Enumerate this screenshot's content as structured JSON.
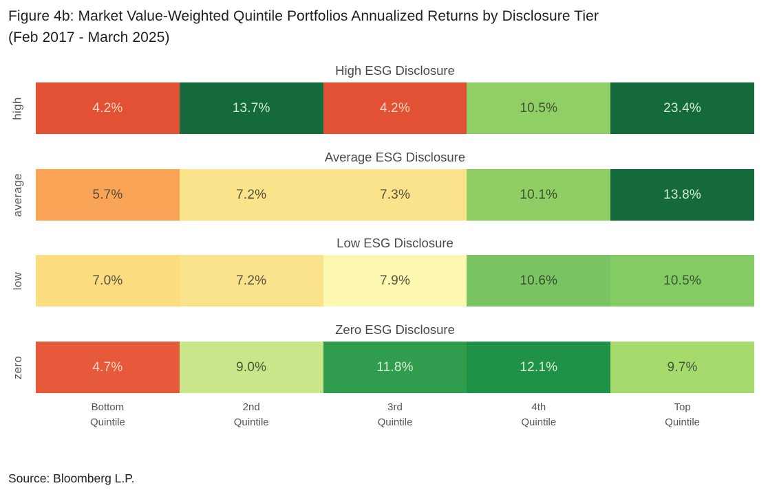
{
  "page": {
    "title_line1": "Figure 4b: Market Value-Weighted Quintile Portfolios Annualized Returns by Disclosure Tier",
    "title_line2": "(Feb 2017 - March 2025)",
    "source": "Source: Bloomberg L.P."
  },
  "chart_data": {
    "type": "heatmap",
    "title": "Figure 4b: Market Value-Weighted Quintile Portfolios Annualized Returns by Disclosure Tier (Feb 2017 - March 2025)",
    "unit": "%",
    "categories": [
      "Bottom Quintile",
      "2nd Quintile",
      "3rd Quintile",
      "4th Quintile",
      "Top Quintile"
    ],
    "legend": "none",
    "grid": false,
    "rows": [
      {
        "label": "high",
        "subtitle": "High ESG Disclosure",
        "values": [
          4.2,
          13.7,
          4.2,
          10.5,
          23.4
        ],
        "cells": [
          {
            "text": "4.2%",
            "bg": "#E25133",
            "fg": "#F8D7C9"
          },
          {
            "text": "13.7%",
            "bg": "#156A3B",
            "fg": "#D0EBD0"
          },
          {
            "text": "4.2%",
            "bg": "#E25133",
            "fg": "#F8D7C9"
          },
          {
            "text": "10.5%",
            "bg": "#90CE66",
            "fg": "#3E5530"
          },
          {
            "text": "23.4%",
            "bg": "#156A3B",
            "fg": "#D0EBD0"
          }
        ]
      },
      {
        "label": "average",
        "subtitle": "Average ESG Disclosure",
        "values": [
          5.7,
          7.2,
          7.3,
          10.1,
          13.8
        ],
        "cells": [
          {
            "text": "5.7%",
            "bg": "#F9A457",
            "fg": "#5A4A38"
          },
          {
            "text": "7.2%",
            "bg": "#FAE38B",
            "fg": "#56523F"
          },
          {
            "text": "7.3%",
            "bg": "#FAE38B",
            "fg": "#56523F"
          },
          {
            "text": "10.1%",
            "bg": "#8FCD65",
            "fg": "#3E5530"
          },
          {
            "text": "13.8%",
            "bg": "#156A3B",
            "fg": "#D0EBD0"
          }
        ]
      },
      {
        "label": "low",
        "subtitle": "Low ESG Disclosure",
        "values": [
          7.0,
          7.2,
          7.9,
          10.6,
          10.5
        ],
        "cells": [
          {
            "text": "7.0%",
            "bg": "#FBDC7E",
            "fg": "#56523F"
          },
          {
            "text": "7.2%",
            "bg": "#FAE38B",
            "fg": "#56523F"
          },
          {
            "text": "7.9%",
            "bg": "#FCF8AF",
            "fg": "#56523F"
          },
          {
            "text": "10.6%",
            "bg": "#7BC465",
            "fg": "#37512D"
          },
          {
            "text": "10.5%",
            "bg": "#85CB63",
            "fg": "#3A5430"
          }
        ]
      },
      {
        "label": "zero",
        "subtitle": "Zero ESG Disclosure",
        "values": [
          4.7,
          9.0,
          11.8,
          12.1,
          9.7
        ],
        "cells": [
          {
            "text": "4.7%",
            "bg": "#E6593A",
            "fg": "#F8D7C9"
          },
          {
            "text": "9.0%",
            "bg": "#C9E68A",
            "fg": "#4E5638"
          },
          {
            "text": "11.8%",
            "bg": "#2F9C4E",
            "fg": "#D6EFD6"
          },
          {
            "text": "12.1%",
            "bg": "#209247",
            "fg": "#D6EFD6"
          },
          {
            "text": "9.7%",
            "bg": "#A6DA6C",
            "fg": "#43553A"
          }
        ]
      }
    ],
    "column_labels": [
      {
        "line1": "Bottom",
        "line2": "Quintile"
      },
      {
        "line1": "2nd",
        "line2": "Quintile"
      },
      {
        "line1": "3rd",
        "line2": "Quintile"
      },
      {
        "line1": "4th",
        "line2": "Quintile"
      },
      {
        "line1": "Top",
        "line2": "Quintile"
      }
    ]
  }
}
